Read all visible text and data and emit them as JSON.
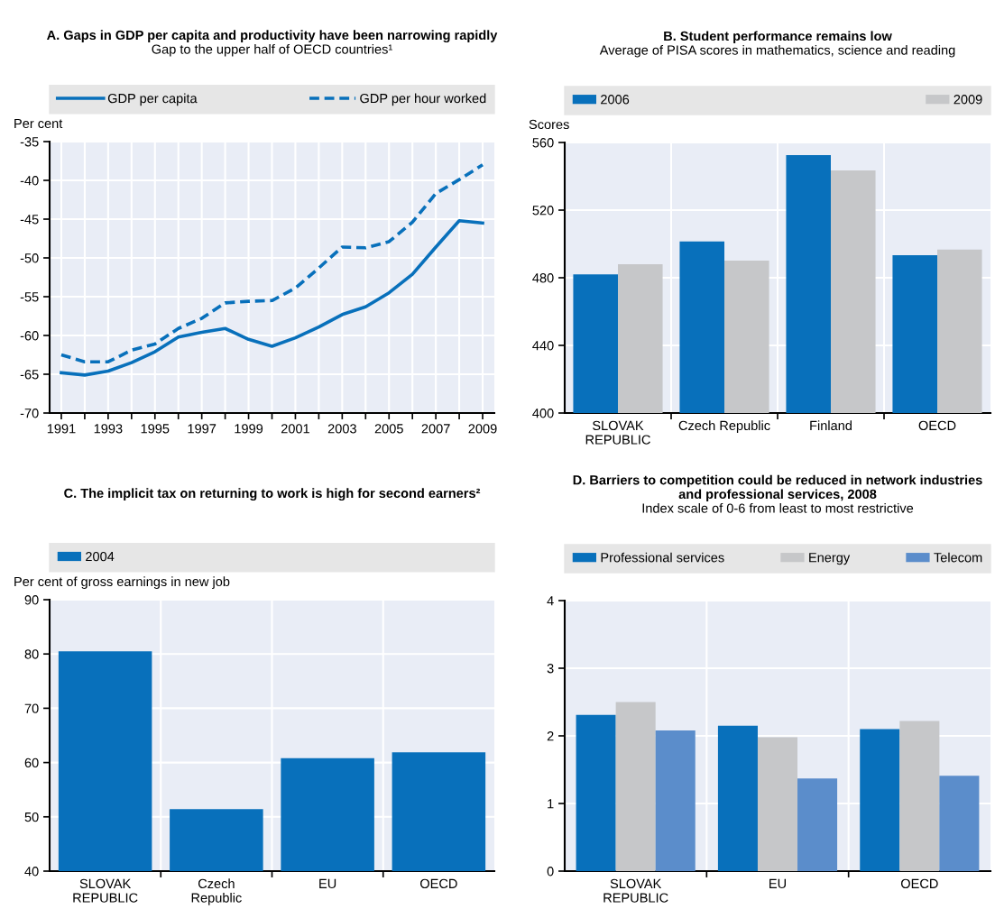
{
  "chart_data": [
    {
      "type": "line",
      "title": "A. Gaps in GDP per capita and productivity have been narrowing rapidly",
      "subtitle": "Gap to the upper half of OECD countries¹",
      "ylabel": "Per cent",
      "x": [
        1991,
        1992,
        1993,
        1994,
        1995,
        1996,
        1997,
        1998,
        1999,
        2000,
        2001,
        2002,
        2003,
        2004,
        2005,
        2006,
        2007,
        2008,
        2009
      ],
      "series": [
        {
          "name": "GDP per capita",
          "color": "#0870bb",
          "line_style": "solid",
          "values": [
            -64.8,
            -65.1,
            -64.6,
            -63.5,
            -62.1,
            -60.2,
            -59.6,
            -59.1,
            -60.5,
            -61.4,
            -60.3,
            -58.9,
            -57.3,
            -56.3,
            -54.5,
            -52.1,
            -48.6,
            -45.2,
            -45.5
          ]
        },
        {
          "name": "GDP per hour worked",
          "color": "#0870bb",
          "line_style": "dashed",
          "values": [
            -62.5,
            -63.4,
            -63.4,
            -61.9,
            -61.1,
            -59.1,
            -57.8,
            -55.8,
            -55.6,
            -55.5,
            -53.9,
            -51.3,
            -48.6,
            -48.7,
            -47.9,
            -45.4,
            -41.7,
            -39.9,
            -38.0
          ]
        }
      ],
      "xlim": [
        1990.5,
        2009.5
      ],
      "xticks": [
        1991,
        {
          "value": 1992,
          "label": null
        },
        1993,
        {
          "value": 1994,
          "label": null
        },
        1995,
        {
          "value": 1996,
          "label": null
        },
        1997,
        {
          "value": 1998,
          "label": null
        },
        1999,
        {
          "value": 2000,
          "label": null
        },
        2001,
        {
          "value": 2002,
          "label": null
        },
        2003,
        {
          "value": 2004,
          "label": null
        },
        2005,
        {
          "value": 2006,
          "label": null
        },
        2007,
        {
          "value": 2008,
          "label": null
        },
        2009
      ],
      "ylim": [
        -70,
        -35
      ],
      "yticks": [
        -70,
        -65,
        -60,
        -55,
        -50,
        -45,
        -40,
        -35
      ],
      "grid": true,
      "legend": "top"
    },
    {
      "type": "bar",
      "title": "B. Student performance remains low",
      "subtitle": "Average of PISA scores in mathematics, science and reading",
      "ylabel": "Scores",
      "categories": [
        "SLOVAK\nREPUBLIC",
        "Czech Republic",
        "Finland",
        "OECD"
      ],
      "series": [
        {
          "name": "2006",
          "color": "#0870bb",
          "values": [
            482,
            501.5,
            552.6,
            493.4
          ]
        },
        {
          "name": "2009",
          "color": "#c6c7c9",
          "values": [
            488,
            490.1,
            543.4,
            496.7
          ]
        }
      ],
      "ylim": [
        400,
        560
      ],
      "yticks": [
        400,
        440,
        480,
        520,
        560
      ],
      "grid": true,
      "legend": "top"
    },
    {
      "type": "bar",
      "title": "C. The implicit tax on returning to work is high for second earners²",
      "ylabel": "Per cent of gross earnings in new job",
      "categories": [
        "SLOVAK\nREPUBLIC",
        "Czech\nRepublic",
        "EU",
        "OECD"
      ],
      "series": [
        {
          "name": "2004",
          "color": "#0870bb",
          "values": [
            80.5,
            51.4,
            60.8,
            61.9
          ]
        }
      ],
      "ylim": [
        40,
        90
      ],
      "yticks": [
        40,
        50,
        60,
        70,
        80,
        90
      ],
      "grid": true,
      "legend": "top"
    },
    {
      "type": "bar",
      "title": "D. Barriers to competition could be reduced in network industries and professional services, 2008",
      "subtitle": "Index scale of 0-6 from least to most restrictive",
      "categories": [
        "SLOVAK\nREPUBLIC",
        "EU",
        "OECD"
      ],
      "series": [
        {
          "name": "Professional services",
          "color": "#0870bb",
          "values": [
            2.31,
            2.15,
            2.1
          ]
        },
        {
          "name": "Energy",
          "color": "#c6c7c9",
          "values": [
            2.5,
            1.98,
            2.22
          ]
        },
        {
          "name": "Telecom",
          "color": "#5b8dcb",
          "values": [
            2.08,
            1.37,
            1.41
          ]
        }
      ],
      "ylim": [
        0,
        4
      ],
      "yticks": [
        0,
        1,
        2,
        3,
        4
      ],
      "grid": true,
      "legend": "top"
    }
  ]
}
